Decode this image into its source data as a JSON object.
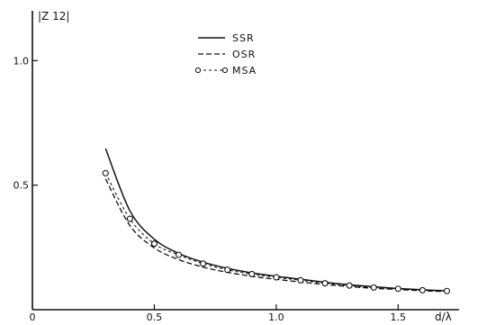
{
  "chart_data": {
    "type": "line",
    "ylabel": "|Z 12|",
    "xlabel": "d/λ",
    "xlim": [
      0,
      1.75
    ],
    "ylim": [
      0,
      1.2
    ],
    "x_ticks": [
      {
        "value": 0,
        "label": "0"
      },
      {
        "value": 0.5,
        "label": "0.5"
      },
      {
        "value": 1.0,
        "label": "1.0"
      },
      {
        "value": 1.5,
        "label": "1.5"
      }
    ],
    "y_ticks": [
      {
        "value": 0.5,
        "label": "0.5"
      },
      {
        "value": 1.0,
        "label": "1.0"
      }
    ],
    "legend_position": "top-center",
    "series": [
      {
        "name": "SSR",
        "style": "solid",
        "x": [
          0.3,
          0.4,
          0.5,
          0.6,
          0.7,
          0.8,
          0.9,
          1.0,
          1.1,
          1.2,
          1.3,
          1.4,
          1.5,
          1.6,
          1.7
        ],
        "values": [
          0.647,
          0.397,
          0.283,
          0.226,
          0.191,
          0.166,
          0.148,
          0.134,
          0.122,
          0.11,
          0.1,
          0.092,
          0.085,
          0.08,
          0.076
        ]
      },
      {
        "name": "OSR",
        "style": "dashed",
        "x": [
          0.3,
          0.4,
          0.5,
          0.6,
          0.7,
          0.8,
          0.9,
          1.0,
          1.1,
          1.2,
          1.3,
          1.4,
          1.5,
          1.6,
          1.7
        ],
        "values": [
          0.525,
          0.338,
          0.248,
          0.201,
          0.171,
          0.15,
          0.134,
          0.122,
          0.111,
          0.101,
          0.093,
          0.086,
          0.081,
          0.076,
          0.073
        ]
      },
      {
        "name": "MSA",
        "style": "dashed-circles",
        "x": [
          0.3,
          0.4,
          0.5,
          0.6,
          0.7,
          0.8,
          0.9,
          1.0,
          1.1,
          1.2,
          1.3,
          1.4,
          1.5,
          1.6,
          1.7
        ],
        "values": [
          0.548,
          0.365,
          0.265,
          0.22,
          0.185,
          0.16,
          0.143,
          0.13,
          0.118,
          0.106,
          0.097,
          0.089,
          0.084,
          0.078,
          0.075
        ]
      }
    ]
  }
}
